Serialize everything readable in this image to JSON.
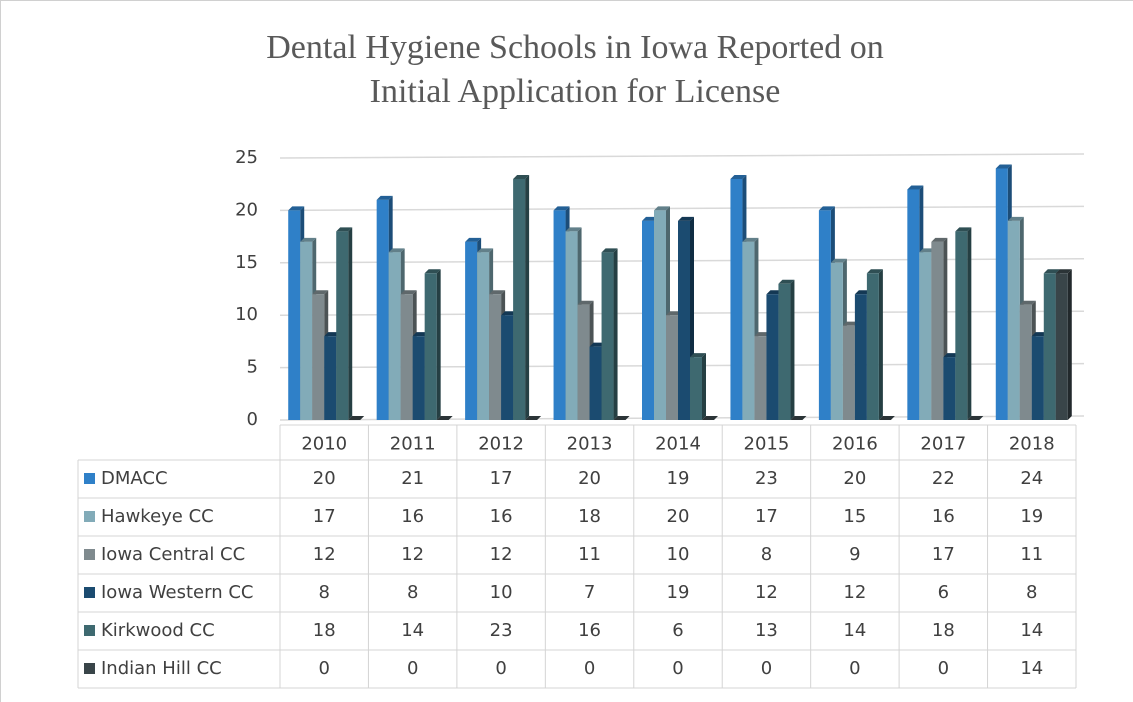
{
  "chart_data": {
    "type": "bar",
    "title": [
      "Dental Hygiene Schools in Iowa Reported on",
      "Initial Application for License"
    ],
    "categories": [
      "2010",
      "2011",
      "2012",
      "2013",
      "2014",
      "2015",
      "2016",
      "2017",
      "2018"
    ],
    "series": [
      {
        "name": "DMACC",
        "color": "#2f80c8",
        "values": [
          20,
          21,
          17,
          20,
          19,
          23,
          20,
          22,
          24
        ]
      },
      {
        "name": "Hawkeye CC",
        "color": "#82abb8",
        "values": [
          17,
          16,
          16,
          18,
          20,
          17,
          15,
          16,
          19
        ]
      },
      {
        "name": "Iowa Central CC",
        "color": "#7f8a8e",
        "values": [
          12,
          12,
          12,
          11,
          10,
          8,
          9,
          17,
          11
        ]
      },
      {
        "name": "Iowa Western CC",
        "color": "#1b4b70",
        "values": [
          8,
          8,
          10,
          7,
          19,
          12,
          12,
          6,
          8
        ]
      },
      {
        "name": "Kirkwood CC",
        "color": "#3e6970",
        "values": [
          18,
          14,
          23,
          16,
          6,
          13,
          14,
          18,
          14
        ]
      },
      {
        "name": "Indian Hill CC",
        "color": "#394549",
        "values": [
          0,
          0,
          0,
          0,
          0,
          0,
          0,
          0,
          14
        ]
      }
    ],
    "ylim": [
      0,
      25
    ],
    "yticks": [
      0,
      5,
      10,
      15,
      20,
      25
    ],
    "grid": true
  }
}
